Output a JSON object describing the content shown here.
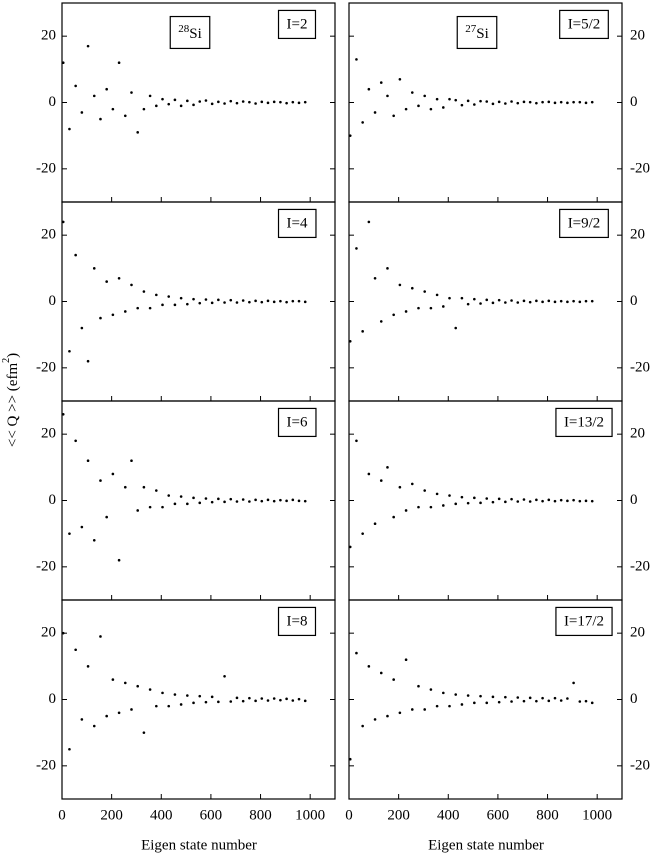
{
  "y_label": {
    "text": "<< Q >> (efm",
    "sup": "2",
    "end": ")"
  },
  "x_label": "Eigen state number",
  "chart_data": [
    {
      "type": "scatter",
      "label": "I=2",
      "nucleus": {
        "mass": "28",
        "symbol": "Si"
      },
      "x": [
        5,
        30,
        55,
        80,
        105,
        130,
        155,
        180,
        205,
        230,
        255,
        280,
        305,
        330,
        355,
        380,
        405,
        430,
        455,
        480,
        505,
        530,
        555,
        580,
        605,
        630,
        655,
        680,
        705,
        730,
        755,
        780,
        805,
        830,
        855,
        880,
        905,
        930,
        955,
        980
      ],
      "values": [
        12,
        -8,
        5,
        -3,
        17,
        2,
        -5,
        4,
        -2,
        12,
        -4,
        3,
        -9,
        -2,
        2,
        -1,
        1,
        -0.5,
        0.8,
        -1,
        0.5,
        -0.7,
        0.3,
        0.6,
        -0.4,
        0.2,
        -0.3,
        0.4,
        -0.2,
        0.3,
        0.1,
        -0.3,
        0.2,
        -0.1,
        0.2,
        0.1,
        -0.2,
        0.1,
        -0.1,
        0.1
      ],
      "xlim": [
        0,
        1100
      ],
      "ylim": [
        -30,
        30
      ],
      "xticks": [
        0,
        200,
        400,
        600,
        800,
        1000
      ],
      "yticks": [
        -20,
        0,
        20
      ]
    },
    {
      "type": "scatter",
      "label": "I=5/2",
      "nucleus": {
        "mass": "27",
        "symbol": "Si"
      },
      "x": [
        5,
        30,
        55,
        80,
        105,
        130,
        155,
        180,
        205,
        230,
        255,
        280,
        305,
        330,
        355,
        380,
        405,
        430,
        455,
        480,
        505,
        530,
        555,
        580,
        605,
        630,
        655,
        680,
        705,
        730,
        755,
        780,
        805,
        830,
        855,
        880,
        905,
        930,
        955,
        980
      ],
      "values": [
        -10,
        13,
        -6,
        4,
        -3,
        6,
        2,
        -4,
        7,
        -2,
        3,
        -1,
        2,
        -2,
        1,
        -1.5,
        1,
        0.7,
        -0.8,
        0.5,
        -0.6,
        0.4,
        0.3,
        -0.4,
        0.2,
        -0.3,
        0.3,
        -0.2,
        0.2,
        0.1,
        -0.2,
        0.1,
        0.2,
        -0.1,
        0.1,
        -0.1,
        0.1,
        0.1,
        -0.1,
        0.1
      ],
      "xlim": [
        0,
        1100
      ],
      "ylim": [
        -30,
        30
      ],
      "xticks": [
        0,
        200,
        400,
        600,
        800,
        1000
      ],
      "yticks": [
        -20,
        0,
        20
      ]
    },
    {
      "type": "scatter",
      "label": "I=4",
      "x": [
        5,
        30,
        55,
        80,
        105,
        130,
        155,
        180,
        205,
        230,
        255,
        280,
        305,
        330,
        355,
        380,
        405,
        430,
        455,
        480,
        505,
        530,
        555,
        580,
        605,
        630,
        655,
        680,
        705,
        730,
        755,
        780,
        805,
        830,
        855,
        880,
        905,
        930,
        955,
        980
      ],
      "values": [
        24,
        -15,
        14,
        -8,
        -18,
        10,
        -5,
        6,
        -4,
        7,
        -3,
        5,
        -2,
        3,
        -2,
        2,
        -1,
        1.5,
        -1,
        1,
        -0.8,
        0.7,
        -0.5,
        0.6,
        -0.4,
        0.5,
        -0.3,
        0.4,
        -0.3,
        0.3,
        -0.2,
        0.2,
        -0.2,
        0.2,
        -0.1,
        0.1,
        -0.2,
        0.1,
        0.1,
        -0.1
      ],
      "xlim": [
        0,
        1100
      ],
      "ylim": [
        -30,
        30
      ],
      "xticks": [
        0,
        200,
        400,
        600,
        800,
        1000
      ],
      "yticks": [
        -20,
        0,
        20
      ]
    },
    {
      "type": "scatter",
      "label": "I=9/2",
      "x": [
        5,
        30,
        55,
        80,
        105,
        130,
        155,
        180,
        205,
        230,
        255,
        280,
        305,
        330,
        355,
        380,
        405,
        430,
        455,
        480,
        505,
        530,
        555,
        580,
        605,
        630,
        655,
        680,
        705,
        730,
        755,
        780,
        805,
        830,
        855,
        880,
        905,
        930,
        955,
        980
      ],
      "values": [
        -12,
        16,
        -9,
        24,
        7,
        -6,
        10,
        -4,
        5,
        -3,
        4,
        -2,
        3,
        -2,
        2,
        -1.5,
        1,
        -8,
        1,
        -0.8,
        0.7,
        -0.6,
        0.5,
        -0.4,
        0.4,
        -0.3,
        0.3,
        -0.3,
        0.2,
        -0.2,
        0.2,
        -0.1,
        0.2,
        -0.1,
        0.1,
        -0.1,
        0.1,
        -0.1,
        0.1,
        0.1
      ],
      "xlim": [
        0,
        1100
      ],
      "ylim": [
        -30,
        30
      ],
      "xticks": [
        0,
        200,
        400,
        600,
        800,
        1000
      ],
      "yticks": [
        -20,
        0,
        20
      ]
    },
    {
      "type": "scatter",
      "label": "I=6",
      "x": [
        5,
        30,
        55,
        80,
        105,
        130,
        155,
        180,
        205,
        230,
        255,
        280,
        305,
        330,
        355,
        380,
        405,
        430,
        455,
        480,
        505,
        530,
        555,
        580,
        605,
        630,
        655,
        680,
        705,
        730,
        755,
        780,
        805,
        830,
        855,
        880,
        905,
        930,
        955,
        980
      ],
      "values": [
        26,
        -10,
        18,
        -8,
        12,
        -12,
        6,
        -5,
        8,
        -18,
        4,
        12,
        -3,
        4,
        -2,
        3,
        -2,
        1.5,
        -1,
        1.2,
        -1,
        0.8,
        -0.7,
        0.6,
        -0.5,
        0.5,
        -0.4,
        0.4,
        -0.3,
        0.3,
        -0.3,
        0.2,
        -0.2,
        0.2,
        -0.2,
        0.1,
        -0.1,
        0.2,
        -0.1,
        -0.2
      ],
      "xlim": [
        0,
        1100
      ],
      "ylim": [
        -30,
        30
      ],
      "xticks": [
        0,
        200,
        400,
        600,
        800,
        1000
      ],
      "yticks": [
        -20,
        0,
        20
      ]
    },
    {
      "type": "scatter",
      "label": "I=13/2",
      "x": [
        5,
        30,
        55,
        80,
        105,
        130,
        155,
        180,
        205,
        230,
        255,
        280,
        305,
        330,
        355,
        380,
        405,
        430,
        455,
        480,
        505,
        530,
        555,
        580,
        605,
        630,
        655,
        680,
        705,
        730,
        755,
        780,
        805,
        830,
        855,
        880,
        905,
        930,
        955,
        980
      ],
      "values": [
        -14,
        18,
        -10,
        8,
        -7,
        6,
        10,
        -5,
        4,
        -3,
        5,
        -2,
        3,
        -2,
        2,
        -1.5,
        1.5,
        -1,
        1,
        -0.8,
        0.8,
        -0.7,
        0.6,
        -0.5,
        0.5,
        -0.4,
        0.4,
        -0.3,
        0.3,
        -0.3,
        0.2,
        -0.2,
        0.2,
        -0.2,
        0.1,
        -0.1,
        0.1,
        -0.2,
        -0.1,
        -0.2
      ],
      "xlim": [
        0,
        1100
      ],
      "ylim": [
        -30,
        30
      ],
      "xticks": [
        0,
        200,
        400,
        600,
        800,
        1000
      ],
      "yticks": [
        -20,
        0,
        20
      ]
    },
    {
      "type": "scatter",
      "label": "I=8",
      "x": [
        5,
        30,
        55,
        80,
        105,
        130,
        155,
        180,
        205,
        230,
        255,
        280,
        305,
        330,
        355,
        380,
        405,
        430,
        455,
        480,
        505,
        530,
        555,
        580,
        605,
        630,
        655,
        680,
        705,
        730,
        755,
        780,
        805,
        830,
        855,
        880,
        905,
        930,
        955,
        980
      ],
      "values": [
        20,
        -15,
        15,
        -6,
        10,
        -8,
        19,
        -5,
        6,
        -4,
        5,
        -3,
        4,
        -10,
        3,
        -2,
        2,
        -2,
        1.5,
        -1.5,
        1.2,
        -1,
        1,
        -0.8,
        0.8,
        -0.7,
        7,
        -0.6,
        0.5,
        -0.5,
        0.4,
        -0.4,
        0.3,
        -0.3,
        0.3,
        -0.2,
        0.2,
        -0.3,
        0.1,
        -0.4
      ],
      "xlim": [
        0,
        1100
      ],
      "ylim": [
        -30,
        30
      ],
      "xticks": [
        0,
        200,
        400,
        600,
        800,
        1000
      ],
      "yticks": [
        -20,
        0,
        20
      ]
    },
    {
      "type": "scatter",
      "label": "I=17/2",
      "x": [
        5,
        30,
        55,
        80,
        105,
        130,
        155,
        180,
        205,
        230,
        255,
        280,
        305,
        330,
        355,
        380,
        405,
        430,
        455,
        480,
        505,
        530,
        555,
        580,
        605,
        630,
        655,
        680,
        705,
        730,
        755,
        780,
        805,
        830,
        855,
        880,
        905,
        930,
        955,
        980
      ],
      "values": [
        -18,
        14,
        -8,
        10,
        -6,
        8,
        -5,
        6,
        -4,
        12,
        -3,
        4,
        -3,
        3,
        -2,
        2,
        -2,
        1.5,
        -1.5,
        1.2,
        -1,
        1,
        -1,
        0.8,
        -0.8,
        0.7,
        -0.6,
        0.6,
        -0.5,
        0.5,
        -0.5,
        0.4,
        -0.4,
        0.4,
        -0.3,
        0.3,
        5,
        -0.6,
        -0.5,
        -1
      ],
      "xlim": [
        0,
        1100
      ],
      "ylim": [
        -30,
        30
      ],
      "xticks": [
        0,
        200,
        400,
        600,
        800,
        1000
      ],
      "yticks": [
        -20,
        0,
        20
      ]
    }
  ]
}
